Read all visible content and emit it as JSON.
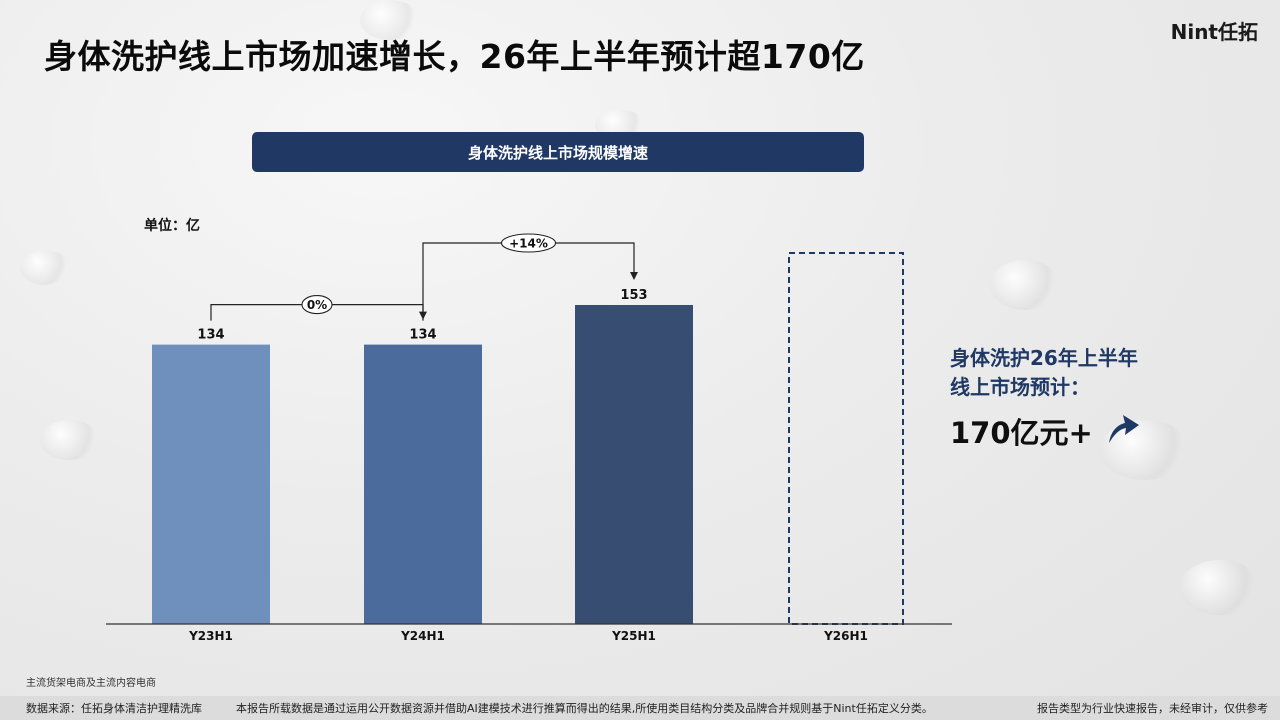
{
  "header": {
    "title": "身体洗护线上市场加速增长，26年上半年预计超170亿",
    "brand": "Nint任拓"
  },
  "chart_data": {
    "type": "bar",
    "title": "身体洗护线上市场规模增速",
    "unit_label": "单位：亿",
    "categories": [
      "Y23H1",
      "Y24H1",
      "Y25H1",
      "Y26H1"
    ],
    "values": [
      134,
      134,
      153,
      null
    ],
    "value_labels": [
      "134",
      "134",
      "153",
      ""
    ],
    "bar_colors": [
      "#6f8fbd",
      "#4b6b9c",
      "#374e72"
    ],
    "forecast_outline_color": "#1f3864",
    "growth_annotations": [
      {
        "from": "Y23H1",
        "to": "Y24H1",
        "label": "0%"
      },
      {
        "from": "Y24H1",
        "to": "Y25H1",
        "label": "+14%"
      }
    ],
    "ylim": [
      0,
      200
    ],
    "grid": false
  },
  "callout": {
    "line1": "身体洗护26年上半年",
    "line2": "线上市场预计：",
    "value": "170亿元+",
    "icon": "up-arrow-icon"
  },
  "source_note": "主流货架电商及主流内容电商",
  "footer": {
    "data_source": "数据来源：任拓身体清洁护理精洗库",
    "disclaimer": "本报告所载数据是通过运用公开数据资源并借助AI建模技术进行推算而得出的结果,所使用类目结构分类及品牌合并规则基于Nint任拓定义分类。",
    "report_type": "报告类型为行业快速报告，未经审计，仅供参考"
  },
  "colors": {
    "accent": "#1f3864",
    "footer_bg": "#dcdcdc"
  }
}
